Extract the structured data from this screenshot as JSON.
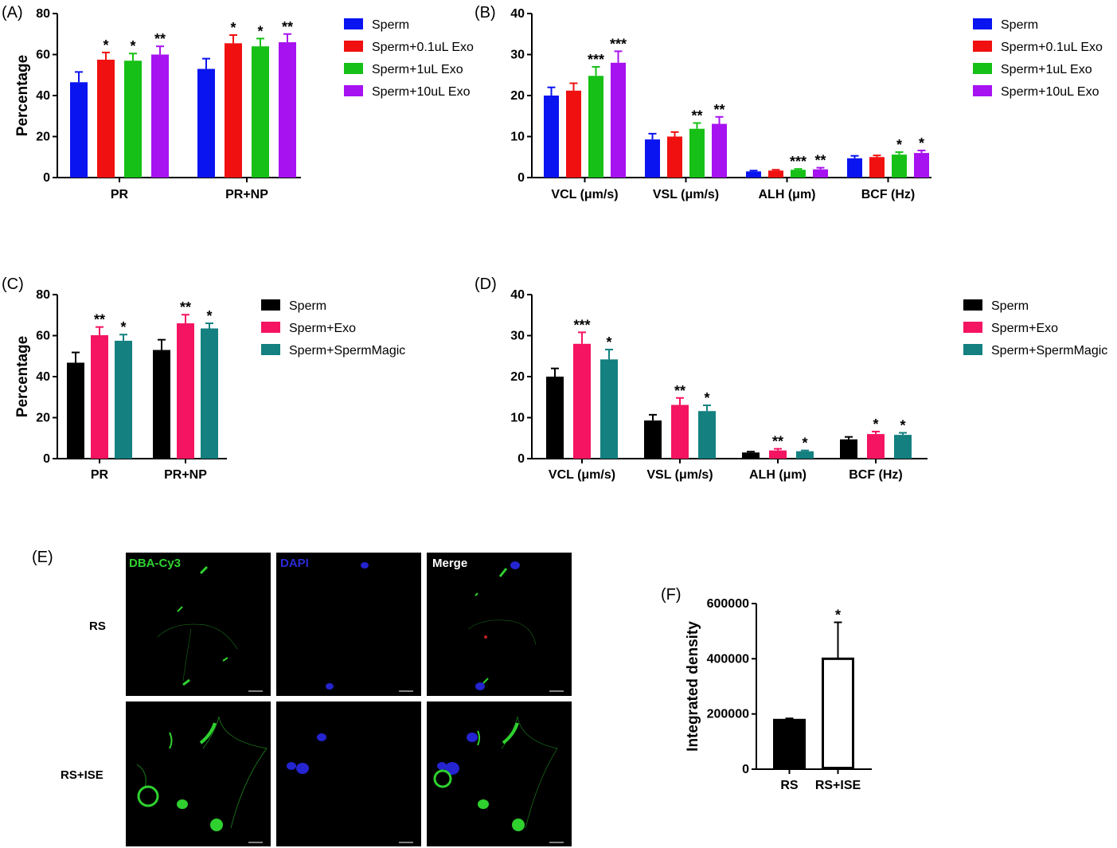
{
  "panels": {
    "A": {
      "label": "(A)"
    },
    "B": {
      "label": "(B)"
    },
    "C": {
      "label": "(C)"
    },
    "D": {
      "label": "(D)"
    },
    "E": {
      "label": "(E)"
    },
    "F": {
      "label": "(F)"
    }
  },
  "micrograph": {
    "column_headers": [
      {
        "text": "DBA-Cy3",
        "color": "#2fd12f"
      },
      {
        "text": "DAPI",
        "color": "#2a2ad8"
      },
      {
        "text": "Merge",
        "color": "#ffffff"
      }
    ],
    "row_labels": [
      "RS",
      "RS+ISE"
    ]
  },
  "chart_data": [
    {
      "id": "A",
      "type": "bar",
      "ylabel": "Percentage",
      "ylim": [
        0,
        80
      ],
      "yticks": [
        0,
        20,
        40,
        60,
        80
      ],
      "categories": [
        "PR",
        "PR+NP"
      ],
      "series": [
        {
          "name": "Sperm",
          "color": "#0a14f0",
          "values": [
            46.5,
            53
          ],
          "errors": [
            5,
            5
          ],
          "sig": [
            "",
            ""
          ]
        },
        {
          "name": "Sperm+0.1uL Exo",
          "color": "#f01010",
          "values": [
            57.5,
            65.5
          ],
          "errors": [
            3.5,
            4
          ],
          "sig": [
            "*",
            "*"
          ]
        },
        {
          "name": "Sperm+1uL Exo",
          "color": "#16c016",
          "values": [
            57,
            64
          ],
          "errors": [
            3.5,
            3.8
          ],
          "sig": [
            "*",
            "*"
          ]
        },
        {
          "name": "Sperm+10uL Exo",
          "color": "#a712f0",
          "values": [
            60,
            66
          ],
          "errors": [
            4,
            4
          ],
          "sig": [
            "**",
            "**"
          ]
        }
      ]
    },
    {
      "id": "B",
      "type": "bar",
      "ylabel": "",
      "ylim": [
        0,
        40
      ],
      "yticks": [
        0,
        10,
        20,
        30,
        40
      ],
      "categories": [
        "VCL (μm/s)",
        "VSL (μm/s)",
        "ALH (μm)",
        "BCF (Hz)"
      ],
      "series": [
        {
          "name": "Sperm",
          "color": "#0a14f0",
          "values": [
            20,
            9.3,
            1.5,
            4.7
          ],
          "errors": [
            2,
            1.4,
            0.2,
            0.6
          ],
          "sig": [
            "",
            "",
            "",
            ""
          ]
        },
        {
          "name": "Sperm+0.1uL Exo",
          "color": "#f01010",
          "values": [
            21.2,
            10,
            1.7,
            5
          ],
          "errors": [
            1.8,
            1.1,
            0.2,
            0.4
          ],
          "sig": [
            "",
            "",
            "",
            ""
          ]
        },
        {
          "name": "Sperm+1uL Exo",
          "color": "#16c016",
          "values": [
            24.8,
            11.9,
            1.9,
            5.6
          ],
          "errors": [
            2.2,
            1.4,
            0.2,
            0.6
          ],
          "sig": [
            "***",
            "**",
            "***",
            "*"
          ]
        },
        {
          "name": "Sperm+10uL Exo",
          "color": "#a712f0",
          "values": [
            28,
            13.1,
            2,
            6
          ],
          "errors": [
            2.8,
            1.7,
            0.4,
            0.6
          ],
          "sig": [
            "***",
            "**",
            "**",
            "*"
          ]
        }
      ]
    },
    {
      "id": "C",
      "type": "bar",
      "ylabel": "Percentage",
      "ylim": [
        0,
        80
      ],
      "yticks": [
        0,
        20,
        40,
        60,
        80
      ],
      "categories": [
        "PR",
        "PR+NP"
      ],
      "series": [
        {
          "name": "Sperm",
          "color": "#000000",
          "values": [
            46.8,
            53
          ],
          "errors": [
            5,
            5
          ],
          "sig": [
            "",
            ""
          ]
        },
        {
          "name": "Sperm+Exo",
          "color": "#f41461",
          "values": [
            60.2,
            66
          ],
          "errors": [
            4,
            4.2
          ],
          "sig": [
            "**",
            "**"
          ]
        },
        {
          "name": "Sperm+SpermMagic",
          "color": "#148080",
          "values": [
            57.5,
            63.5
          ],
          "errors": [
            3,
            2.5
          ],
          "sig": [
            "*",
            "*"
          ]
        }
      ]
    },
    {
      "id": "D",
      "type": "bar",
      "ylabel": "",
      "ylim": [
        0,
        40
      ],
      "yticks": [
        0,
        10,
        20,
        30,
        40
      ],
      "categories": [
        "VCL (μm/s)",
        "VSL (μm/s)",
        "ALH (μm)",
        "BCF (Hz)"
      ],
      "series": [
        {
          "name": "Sperm",
          "color": "#000000",
          "values": [
            20,
            9.3,
            1.5,
            4.7
          ],
          "errors": [
            2,
            1.4,
            0.2,
            0.6
          ],
          "sig": [
            "",
            "",
            "",
            ""
          ]
        },
        {
          "name": "Sperm+Exo",
          "color": "#f41461",
          "values": [
            28,
            13.1,
            2,
            6
          ],
          "errors": [
            2.8,
            1.7,
            0.4,
            0.6
          ],
          "sig": [
            "***",
            "**",
            "**",
            "*"
          ]
        },
        {
          "name": "Sperm+SpermMagic",
          "color": "#148080",
          "values": [
            24.2,
            11.6,
            1.8,
            5.8
          ],
          "errors": [
            2.4,
            1.4,
            0.2,
            0.5
          ],
          "sig": [
            "*",
            "*",
            "*",
            "*"
          ]
        }
      ]
    },
    {
      "id": "F",
      "type": "bar",
      "ylabel": "Integrated density",
      "ylim": [
        0,
        600000
      ],
      "yticks": [
        0,
        200000,
        400000,
        600000
      ],
      "categories": [
        "RS",
        "RS+ISE"
      ],
      "series": [
        {
          "name": "",
          "colors": [
            "#000000",
            "#ffffff"
          ],
          "values": [
            178000,
            400000
          ],
          "errors": [
            6000,
            132000
          ],
          "sig": [
            "",
            "*"
          ]
        }
      ]
    }
  ]
}
